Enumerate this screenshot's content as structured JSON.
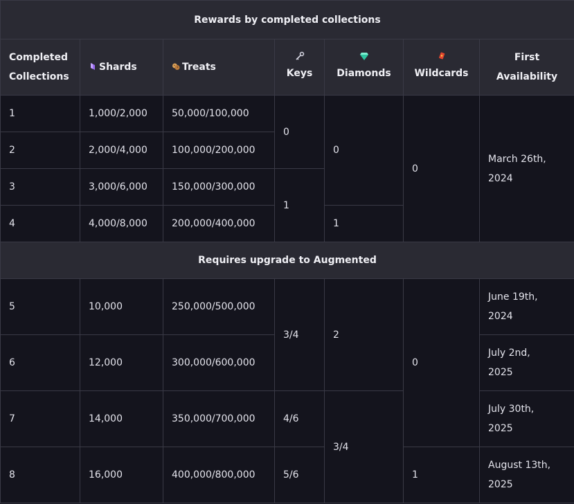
{
  "title": "Rewards by completed collections",
  "headers": {
    "completed_line1": "Completed",
    "completed_line2": "Collections",
    "shards": "Shards",
    "treats": "Treats",
    "keys": "Keys",
    "diamonds": "Diamonds",
    "wildcards": "Wildcards",
    "first_line1": "First",
    "first_line2": "Availability"
  },
  "icons": {
    "shards": "purple-crystal-icon",
    "treats": "cookies-icon",
    "keys": "key-icon",
    "diamonds": "diamond-icon",
    "wildcards": "wildcard-card-icon"
  },
  "section1": {
    "rows": [
      {
        "collections": "1",
        "shards": "1,000/2,000",
        "treats": "50,000/100,000"
      },
      {
        "collections": "2",
        "shards": "2,000/4,000",
        "treats": "100,000/200,000"
      },
      {
        "collections": "3",
        "shards": "3,000/6,000",
        "treats": "150,000/300,000"
      },
      {
        "collections": "4",
        "shards": "4,000/8,000",
        "treats": "200,000/400,000"
      }
    ],
    "keys_1_2": "0",
    "keys_3_4": "1",
    "diamonds_1_3": "0",
    "diamonds_4": "1",
    "wildcards_1_4": "0",
    "availability_line1": "March 26th,",
    "availability_line2": "2024"
  },
  "section2_title": "Requires upgrade to Augmented",
  "section2": {
    "rows": [
      {
        "collections": "5",
        "shards": "10,000",
        "treats": "250,000/500,000",
        "avail1": "June 19th,",
        "avail2": "2024"
      },
      {
        "collections": "6",
        "shards": "12,000",
        "treats": "300,000/600,000",
        "avail1": "July 2nd,",
        "avail2": "2025"
      },
      {
        "collections": "7",
        "shards": "14,000",
        "treats": "350,000/700,000",
        "avail1": "July 30th,",
        "avail2": "2025"
      },
      {
        "collections": "8",
        "shards": "16,000",
        "treats": "400,000/800,000",
        "avail1": "August 13th,",
        "avail2": "2025"
      }
    ],
    "keys_5_6": "3/4",
    "keys_7": "4/6",
    "keys_8": "5/6",
    "diamonds_5_6": "2",
    "diamonds_7_8": "3/4",
    "wildcards_5_7": "0",
    "wildcards_8": "1"
  }
}
